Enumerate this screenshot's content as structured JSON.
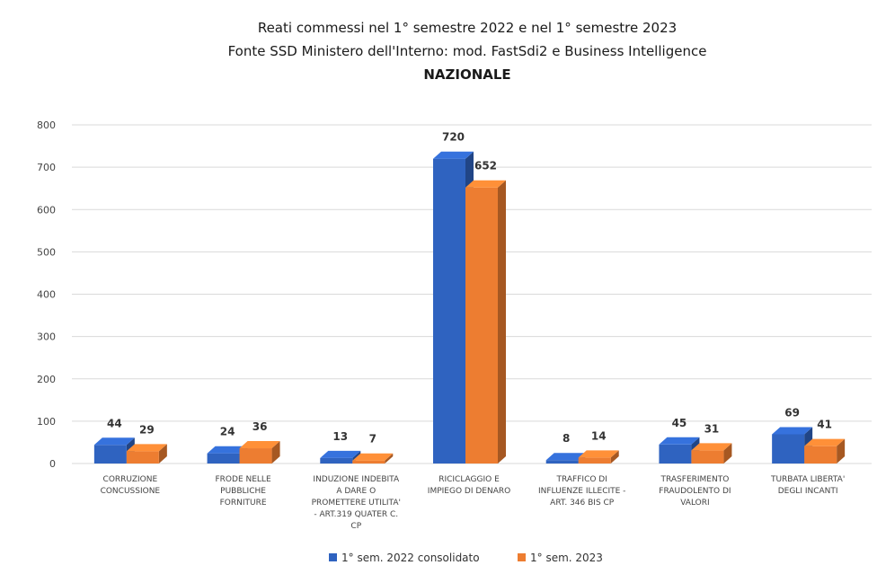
{
  "chart_data": {
    "type": "bar",
    "title": [
      "Reati commessi nel 1° semestre 2022 e nel 1° semestre 2023",
      "Fonte SSD Ministero dell'Interno: mod. FastSdi2 e Business Intelligence",
      "NAZIONALE"
    ],
    "categories": [
      [
        "CORRUZIONE",
        "CONCUSSIONE"
      ],
      [
        "FRODE NELLE",
        "PUBBLICHE",
        "FORNITURE"
      ],
      [
        "INDUZIONE INDEBITA",
        "A DARE O",
        "PROMETTERE UTILITA'",
        "- ART.319 QUATER C.",
        "CP"
      ],
      [
        "RICICLAGGIO E",
        "IMPIEGO DI DENARO"
      ],
      [
        "TRAFFICO DI",
        "INFLUENZE ILLECITE -",
        "ART. 346 BIS CP"
      ],
      [
        "TRASFERIMENTO",
        "FRAUDOLENTO DI",
        "VALORI"
      ],
      [
        "TURBATA LIBERTA'",
        "DEGLI INCANTI"
      ]
    ],
    "series": [
      {
        "name": "1° sem. 2022 consolidato",
        "color": "#2f63c0",
        "values": [
          44,
          24,
          13,
          720,
          8,
          45,
          69
        ]
      },
      {
        "name": "1° sem. 2023",
        "color": "#ed7d31",
        "values": [
          29,
          36,
          7,
          652,
          14,
          31,
          41
        ]
      }
    ],
    "yticks": [
      "0",
      "100",
      "200",
      "300",
      "400",
      "500",
      "600",
      "700",
      "800"
    ],
    "ylim": [
      0,
      800
    ],
    "grid": true,
    "legend": "bottom"
  }
}
